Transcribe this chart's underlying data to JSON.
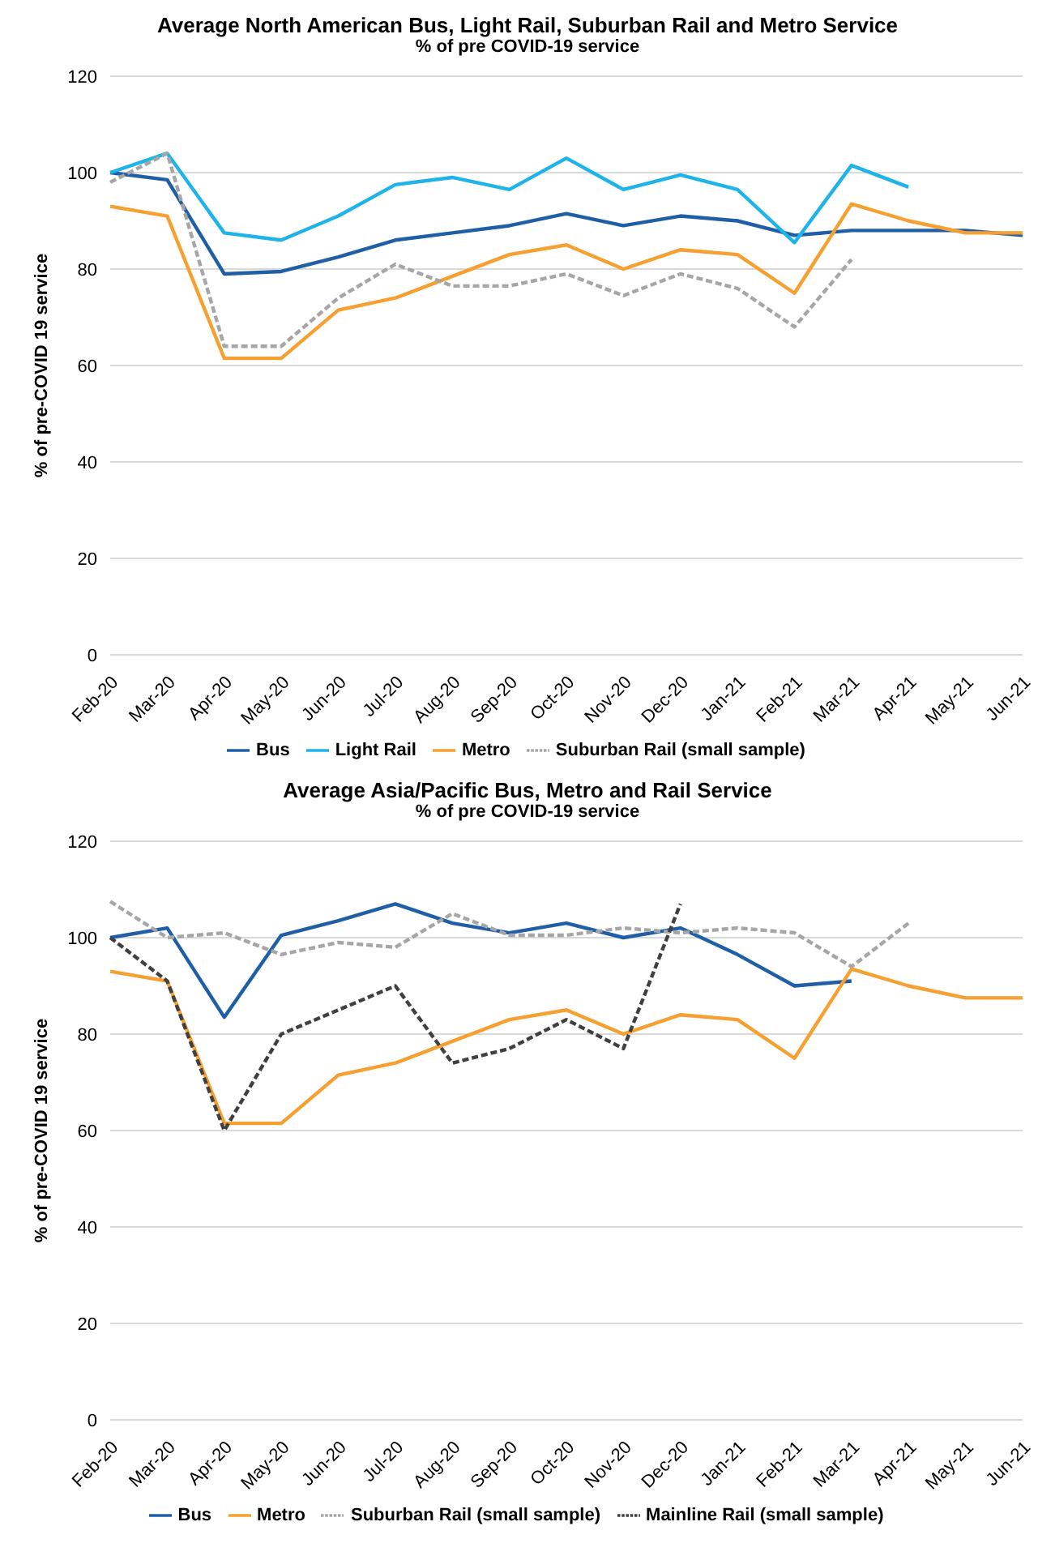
{
  "chart_data": [
    {
      "type": "line",
      "title": "Average North American Bus, Light Rail, Suburban Rail and Metro Service",
      "subtitle": "% of pre COVID-19 service",
      "ylabel": "% of pre-COVID 19 service",
      "categories": [
        "Feb-20",
        "Mar-20",
        "Apr-20",
        "May-20",
        "Jun-20",
        "Jul-20",
        "Aug-20",
        "Sep-20",
        "Oct-20",
        "Nov-20",
        "Dec-20",
        "Jan-21",
        "Feb-21",
        "Mar-21",
        "Apr-21",
        "May-21",
        "Jun-21"
      ],
      "ylim": [
        0,
        120
      ],
      "yticks": [
        0,
        20,
        40,
        60,
        80,
        100,
        120
      ],
      "grid": "y",
      "legend": "bottom",
      "series": [
        {
          "name": "Bus",
          "color": "#1f5fa6",
          "values": [
            100,
            98.5,
            79,
            79.5,
            82.5,
            86,
            87.5,
            89,
            91.5,
            89,
            91,
            90,
            87,
            88,
            88,
            88,
            87
          ]
        },
        {
          "name": "Light Rail",
          "color": "#1eb4ea",
          "values": [
            100,
            104,
            87.5,
            86,
            91,
            97.5,
            99,
            96.5,
            103,
            96.5,
            99.5,
            96.5,
            85.5,
            101.5,
            97,
            null,
            null
          ]
        },
        {
          "name": "Metro",
          "color": "#f5a031",
          "values": [
            93,
            91,
            61.5,
            61.5,
            71.5,
            74,
            78.5,
            83,
            85,
            80,
            84,
            83,
            75,
            93.5,
            90,
            87.5,
            87.5
          ]
        },
        {
          "name": "Suburban Rail (small sample)",
          "color": "#a6a6a6",
          "line_style": "dashed",
          "values": [
            98,
            104,
            64,
            64,
            74,
            81,
            76.5,
            76.5,
            79,
            74.5,
            79,
            76,
            68,
            82,
            null,
            null,
            null
          ]
        }
      ]
    },
    {
      "type": "line",
      "title": "Average Asia/Pacific Bus, Metro and Rail Service",
      "subtitle": "% of pre COVID-19 service",
      "ylabel": "% of pre-COVID 19 service",
      "categories": [
        "Feb-20",
        "Mar-20",
        "Apr-20",
        "May-20",
        "Jun-20",
        "Jul-20",
        "Aug-20",
        "Sep-20",
        "Oct-20",
        "Nov-20",
        "Dec-20",
        "Jan-21",
        "Feb-21",
        "Mar-21",
        "Apr-21",
        "May-21",
        "Jun-21"
      ],
      "ylim": [
        0,
        120
      ],
      "yticks": [
        0,
        20,
        40,
        60,
        80,
        100,
        120
      ],
      "grid": "y",
      "legend": "bottom",
      "series": [
        {
          "name": "Bus",
          "color": "#1f5fa6",
          "values": [
            100,
            102,
            83.5,
            100.5,
            103.5,
            107,
            103,
            101,
            103,
            100,
            102,
            96.5,
            90,
            91,
            null,
            null,
            null
          ]
        },
        {
          "name": "Metro",
          "color": "#f5a031",
          "values": [
            93,
            91,
            61.5,
            61.5,
            71.5,
            74,
            78.5,
            83,
            85,
            80,
            84,
            83,
            75,
            93.5,
            90,
            87.5,
            87.5
          ]
        },
        {
          "name": "Suburban Rail (small sample)",
          "color": "#a6a6a6",
          "line_style": "dashed",
          "values": [
            107.5,
            100,
            101,
            96.5,
            99,
            98,
            105,
            100.5,
            100.5,
            102,
            101,
            102,
            101,
            94,
            103,
            null,
            null
          ]
        },
        {
          "name": "Mainline Rail (small sample)",
          "color": "#404040",
          "line_style": "dashed",
          "values": [
            100,
            91,
            60,
            80,
            85,
            90,
            74,
            77,
            83,
            77,
            107,
            null,
            null,
            null,
            null,
            null,
            null
          ]
        }
      ]
    }
  ]
}
